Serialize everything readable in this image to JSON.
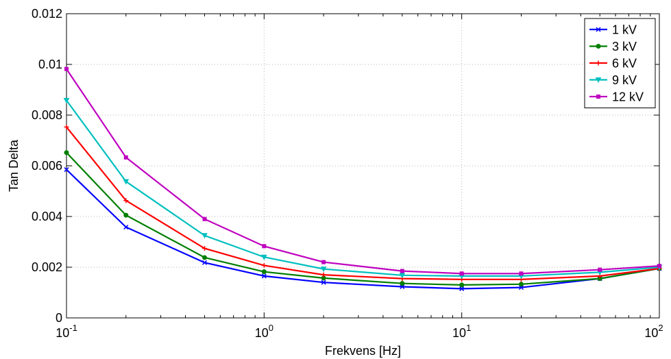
{
  "chart_data": {
    "type": "line",
    "xlabel": "Frekvens [Hz]",
    "ylabel": "Tan Delta",
    "xscale": "log",
    "xlim": [
      0.1,
      100
    ],
    "ylim": [
      0,
      0.012
    ],
    "x": [
      0.1,
      0.2,
      0.5,
      1,
      2,
      5,
      10,
      20,
      50,
      100
    ],
    "xticks": [
      {
        "base": "10",
        "exp": "-1"
      },
      {
        "base": "10",
        "exp": "0"
      },
      {
        "base": "10",
        "exp": "1"
      },
      {
        "base": "10",
        "exp": "2"
      }
    ],
    "yticks": [
      "0",
      "0.002",
      "0.004",
      "0.006",
      "0.008",
      "0.01",
      "0.012"
    ],
    "ytick_values": [
      0,
      0.002,
      0.004,
      0.006,
      0.008,
      0.01,
      0.012
    ],
    "grid": true,
    "legend_position": "top-right",
    "series": [
      {
        "name": "1 kV",
        "color": "#0000ff",
        "marker": "x",
        "values": [
          0.00585,
          0.00358,
          0.00218,
          0.00165,
          0.0014,
          0.00123,
          0.00115,
          0.0012,
          0.00155,
          0.00195
        ]
      },
      {
        "name": "3 kV",
        "color": "#007f00",
        "marker": "circle",
        "values": [
          0.00652,
          0.00405,
          0.00238,
          0.00182,
          0.00157,
          0.00136,
          0.0013,
          0.00133,
          0.00155,
          0.00195
        ]
      },
      {
        "name": "6 kV",
        "color": "#ff0000",
        "marker": "plus",
        "values": [
          0.00753,
          0.00463,
          0.00274,
          0.00207,
          0.0017,
          0.00155,
          0.00152,
          0.00152,
          0.00165,
          0.00195
        ]
      },
      {
        "name": "9 kV",
        "color": "#00bfbf",
        "marker": "triangle-down",
        "values": [
          0.00858,
          0.00538,
          0.00325,
          0.0024,
          0.00193,
          0.00168,
          0.00165,
          0.00165,
          0.0018,
          0.002
        ]
      },
      {
        "name": "12 kV",
        "color": "#bf00bf",
        "marker": "square",
        "values": [
          0.00982,
          0.00633,
          0.0039,
          0.00283,
          0.0022,
          0.00185,
          0.00175,
          0.00175,
          0.0019,
          0.00205
        ]
      }
    ]
  }
}
